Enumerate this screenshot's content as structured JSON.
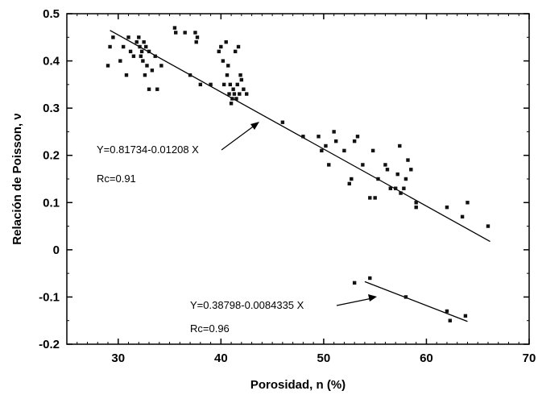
{
  "chart_data": {
    "type": "scatter",
    "xlabel": "Porosidad, n (%)",
    "ylabel": "Relación de Poisson, ν",
    "xlim": [
      25,
      70
    ],
    "ylim": [
      -0.2,
      0.5
    ],
    "xticks": [
      "30",
      "40",
      "50",
      "60",
      "70"
    ],
    "yticks": [
      "0.5",
      "0.4",
      "0.3",
      "0.2",
      "0.1",
      "0",
      "-0.1",
      "-0.2"
    ],
    "grid": false,
    "series": [
      {
        "points": [
          [
            29.0,
            0.39
          ],
          [
            29.2,
            0.43
          ],
          [
            29.5,
            0.45
          ],
          [
            30.2,
            0.4
          ],
          [
            30.5,
            0.43
          ],
          [
            30.8,
            0.37
          ],
          [
            31.0,
            0.45
          ],
          [
            31.2,
            0.42
          ],
          [
            31.5,
            0.41
          ],
          [
            31.8,
            0.44
          ],
          [
            32.0,
            0.45
          ],
          [
            32.1,
            0.43
          ],
          [
            32.2,
            0.41
          ],
          [
            32.3,
            0.42
          ],
          [
            32.4,
            0.4
          ],
          [
            32.5,
            0.44
          ],
          [
            32.6,
            0.37
          ],
          [
            32.7,
            0.43
          ],
          [
            32.8,
            0.39
          ],
          [
            33.0,
            0.42
          ],
          [
            33.0,
            0.34
          ],
          [
            33.3,
            0.38
          ],
          [
            33.6,
            0.41
          ],
          [
            33.8,
            0.34
          ],
          [
            34.2,
            0.39
          ],
          [
            35.5,
            0.47
          ],
          [
            35.6,
            0.46
          ],
          [
            36.5,
            0.46
          ],
          [
            37.0,
            0.37
          ],
          [
            37.5,
            0.46
          ],
          [
            37.6,
            0.44
          ],
          [
            37.7,
            0.45
          ],
          [
            38.0,
            0.35
          ],
          [
            39.0,
            0.35
          ],
          [
            39.8,
            0.42
          ],
          [
            40.0,
            0.43
          ],
          [
            40.2,
            0.4
          ],
          [
            40.3,
            0.35
          ],
          [
            40.5,
            0.44
          ],
          [
            40.6,
            0.37
          ],
          [
            40.7,
            0.39
          ],
          [
            40.8,
            0.33
          ],
          [
            40.9,
            0.35
          ],
          [
            41.0,
            0.31
          ],
          [
            41.1,
            0.32
          ],
          [
            41.2,
            0.34
          ],
          [
            41.3,
            0.33
          ],
          [
            41.4,
            0.42
          ],
          [
            41.5,
            0.32
          ],
          [
            41.6,
            0.35
          ],
          [
            41.7,
            0.43
          ],
          [
            41.8,
            0.33
          ],
          [
            41.9,
            0.37
          ],
          [
            42.0,
            0.36
          ],
          [
            42.2,
            0.34
          ],
          [
            42.5,
            0.33
          ],
          [
            46.0,
            0.27
          ],
          [
            48.0,
            0.24
          ],
          [
            49.5,
            0.24
          ],
          [
            49.8,
            0.21
          ],
          [
            50.2,
            0.22
          ],
          [
            50.5,
            0.18
          ],
          [
            51.0,
            0.25
          ],
          [
            51.2,
            0.23
          ],
          [
            52.0,
            0.21
          ],
          [
            52.5,
            0.14
          ],
          [
            52.7,
            0.15
          ],
          [
            53.0,
            0.23
          ],
          [
            53.3,
            0.24
          ],
          [
            53.8,
            0.18
          ],
          [
            54.5,
            0.11
          ],
          [
            54.8,
            0.21
          ],
          [
            55.0,
            0.11
          ],
          [
            55.3,
            0.15
          ],
          [
            56.0,
            0.18
          ],
          [
            56.2,
            0.17
          ],
          [
            56.5,
            0.13
          ],
          [
            57.0,
            0.13
          ],
          [
            57.2,
            0.16
          ],
          [
            57.4,
            0.22
          ],
          [
            57.5,
            0.12
          ],
          [
            57.8,
            0.13
          ],
          [
            58.0,
            0.15
          ],
          [
            58.2,
            0.19
          ],
          [
            58.5,
            0.17
          ],
          [
            59.0,
            0.1
          ],
          [
            59.0,
            0.09
          ],
          [
            62.0,
            0.09
          ],
          [
            63.5,
            0.07
          ],
          [
            64.0,
            0.1
          ],
          [
            66.0,
            0.05
          ],
          [
            53.0,
            -0.07
          ],
          [
            54.5,
            -0.06
          ],
          [
            58.0,
            -0.1
          ],
          [
            62.0,
            -0.13
          ],
          [
            62.3,
            -0.15
          ],
          [
            63.8,
            -0.14
          ]
        ]
      }
    ],
    "fits": [
      {
        "equation": "Y=0.81734-0.01208 X",
        "rc": "Rc=0.91",
        "x_range": [
          29.2,
          66.2
        ],
        "intercept": 0.81734,
        "slope": -0.01208
      },
      {
        "equation": "Y=0.38798-0.0084335 X",
        "rc": "Rc=0.96",
        "x_range": [
          54.0,
          64.0
        ],
        "intercept": 0.38798,
        "slope": -0.0084335
      }
    ]
  }
}
